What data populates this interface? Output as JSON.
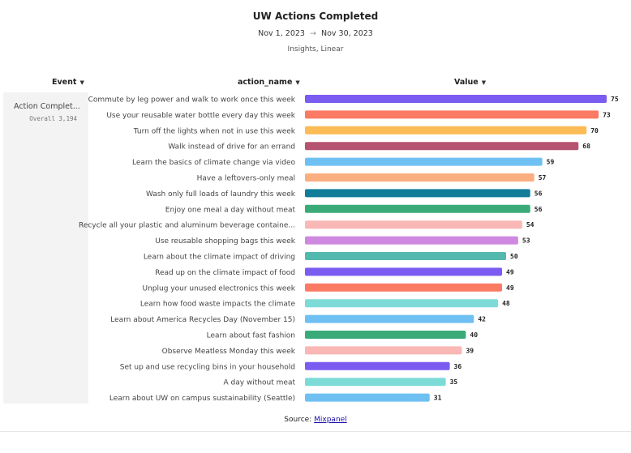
{
  "header": {
    "title": "UW Actions Completed",
    "date_start": "Nov 1, 2023",
    "date_arrow": "→",
    "date_end": "Nov 30, 2023",
    "subtitle": "Insights, Linear"
  },
  "columns": {
    "event": "Event",
    "action_name": "action_name",
    "value": "Value",
    "chevron": "chevron-down-icon"
  },
  "event": {
    "name": "Action Complet...",
    "overall": "Overall 3,194"
  },
  "footer": {
    "source_label": "Source:",
    "source_link": "Mixpanel"
  },
  "chart_data": {
    "type": "bar",
    "orientation": "horizontal",
    "title": "UW Actions Completed",
    "xlim": [
      0,
      75
    ],
    "grid": false,
    "legend": "none",
    "categories": [
      "Commute by leg power and walk to work once this week",
      "Use your reusable water bottle every day this week",
      "Turn off the lights when not in use this week",
      "Walk instead of drive for an errand",
      "Learn the basics of climate change via video",
      "Have a leftovers-only meal",
      "Wash only full loads of laundry this week",
      "Enjoy one meal a day without meat",
      "Recycle all your plastic and aluminum beverage containe...",
      "Use reusable shopping bags this week",
      "Learn about the climate impact of driving",
      "Read up on the climate impact of food",
      "Unplug your unused electronics this week",
      "Learn how food waste impacts the climate",
      "Learn about America Recycles Day (November 15)",
      "Learn about fast fashion",
      "Observe Meatless Monday this week",
      "Set up and use recycling bins in your household",
      "A day without meat",
      "Learn about UW on campus sustainability (Seattle)"
    ],
    "values": [
      75,
      73,
      70,
      68,
      59,
      57,
      56,
      56,
      54,
      53,
      50,
      49,
      49,
      48,
      42,
      40,
      39,
      36,
      35,
      31
    ],
    "colors": [
      "#7b5cf0",
      "#fa7a64",
      "#fbbc55",
      "#b65370",
      "#6fc0f2",
      "#fbae80",
      "#127d99",
      "#3aab78",
      "#f9b7b5",
      "#cf88e0",
      "#53b8ad",
      "#7b5cf0",
      "#fa7a64",
      "#7cdbd7",
      "#6fc0f2",
      "#3aab78",
      "#f9b7b5",
      "#7b5cf0",
      "#7cdbd7",
      "#6fc0f2"
    ]
  }
}
